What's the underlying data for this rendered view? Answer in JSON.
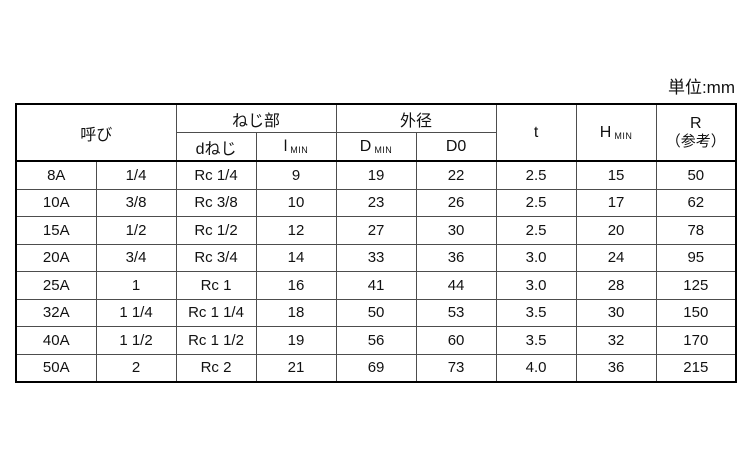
{
  "unit_label": "単位:mm",
  "table": {
    "header": {
      "yobi": "呼び",
      "nejibu": "ねじ部",
      "d_neji": "dねじ",
      "l_min_letter": "l",
      "l_min_sub": "MIN",
      "gaikei": "外径",
      "d_min_letter": "D",
      "d_min_sub": "MIN",
      "d0": "D0",
      "t": "t",
      "h_min_letter": "H",
      "h_min_sub": "MIN",
      "r_letter": "R",
      "r_note": "（参考）"
    },
    "rows": [
      [
        "8A",
        "1/4",
        "Rc 1/4",
        "9",
        "19",
        "22",
        "2.5",
        "15",
        "50"
      ],
      [
        "10A",
        "3/8",
        "Rc 3/8",
        "10",
        "23",
        "26",
        "2.5",
        "17",
        "62"
      ],
      [
        "15A",
        "1/2",
        "Rc 1/2",
        "12",
        "27",
        "30",
        "2.5",
        "20",
        "78"
      ],
      [
        "20A",
        "3/4",
        "Rc 3/4",
        "14",
        "33",
        "36",
        "3.0",
        "24",
        "95"
      ],
      [
        "25A",
        "1",
        "Rc 1",
        "16",
        "41",
        "44",
        "3.0",
        "28",
        "125"
      ],
      [
        "32A",
        "1 1/4",
        "Rc 1 1/4",
        "18",
        "50",
        "53",
        "3.5",
        "30",
        "150"
      ],
      [
        "40A",
        "1 1/2",
        "Rc 1 1/2",
        "19",
        "56",
        "60",
        "3.5",
        "32",
        "170"
      ],
      [
        "50A",
        "2",
        "Rc 2",
        "21",
        "69",
        "73",
        "4.0",
        "36",
        "215"
      ]
    ]
  }
}
